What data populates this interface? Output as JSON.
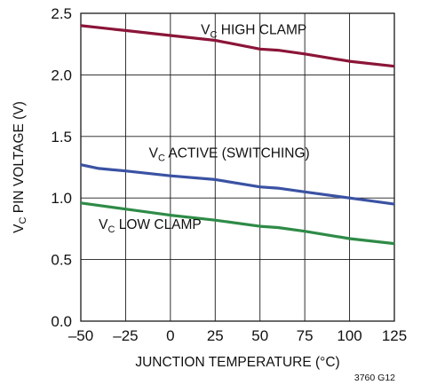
{
  "chart_data": {
    "type": "line",
    "title": "",
    "xlabel": "JUNCTION TEMPERATURE (°C)",
    "ylabel": {
      "prefix": "V",
      "sub": "C",
      "suffix": " PIN VOLTAGE (V)"
    },
    "xlim": [
      -50,
      125
    ],
    "ylim": [
      0,
      2.5
    ],
    "x_ticks": [
      -50,
      -25,
      0,
      25,
      50,
      75,
      100,
      125
    ],
    "x_tick_labels": [
      "–50",
      "–25",
      "0",
      "25",
      "50",
      "75",
      "100",
      "125"
    ],
    "y_ticks": [
      0,
      0.5,
      1,
      1.5,
      2,
      2.5
    ],
    "y_tick_labels": [
      "0.0",
      "0.5",
      "1.0",
      "1.5",
      "2.0",
      "2.5"
    ],
    "grid": true,
    "legend": "none",
    "figure_id": "3760 G12",
    "series": [
      {
        "key": "high",
        "label": {
          "prefix": "V",
          "sub": "C",
          "suffix": " HIGH CLAMP"
        },
        "color": "#8b1538",
        "label_at": [
          17,
          2.33
        ],
        "x": [
          -50,
          -25,
          0,
          25,
          50,
          60,
          75,
          100,
          125
        ],
        "y": [
          2.4,
          2.36,
          2.32,
          2.28,
          2.21,
          2.2,
          2.17,
          2.11,
          2.07
        ]
      },
      {
        "key": "active",
        "label": {
          "prefix": "V",
          "sub": "C",
          "suffix": " ACTIVE (SWITCHING)"
        },
        "color": "#3a52a3",
        "label_at": [
          -12,
          1.33
        ],
        "x": [
          -50,
          -40,
          -25,
          0,
          25,
          50,
          60,
          75,
          100,
          125
        ],
        "y": [
          1.27,
          1.24,
          1.22,
          1.18,
          1.15,
          1.09,
          1.08,
          1.05,
          1.0,
          0.95
        ]
      },
      {
        "key": "low",
        "label": {
          "prefix": "V",
          "sub": "C",
          "suffix": " LOW CLAMP"
        },
        "color": "#2e8b47",
        "label_at": [
          -40,
          0.75
        ],
        "x": [
          -50,
          -25,
          0,
          25,
          50,
          60,
          75,
          100,
          125
        ],
        "y": [
          0.96,
          0.91,
          0.86,
          0.82,
          0.77,
          0.76,
          0.73,
          0.67,
          0.63
        ]
      }
    ]
  }
}
